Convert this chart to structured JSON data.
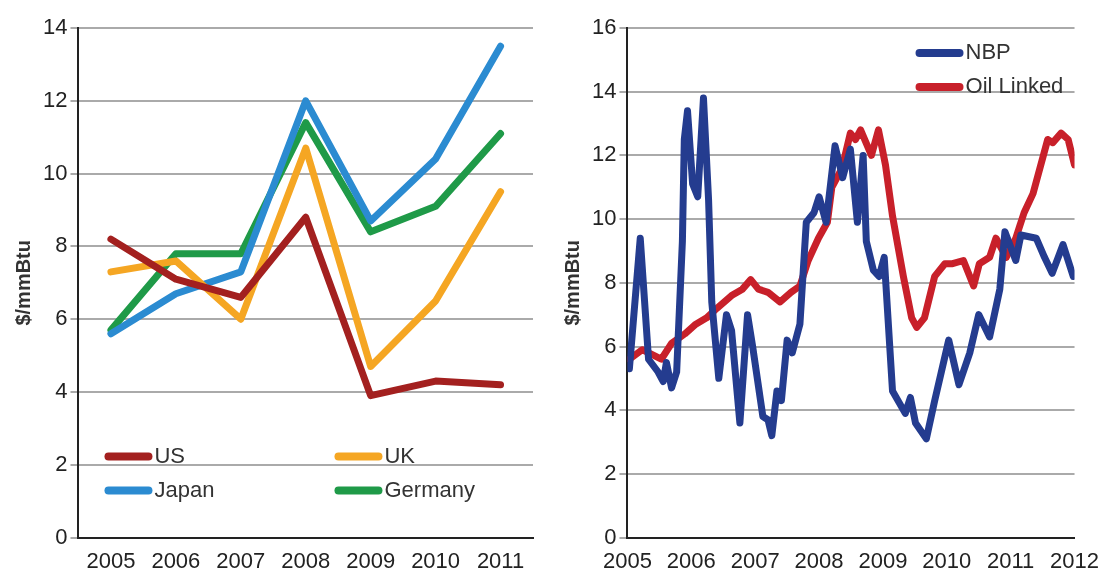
{
  "chart_data": [
    {
      "type": "line",
      "ylabel": "$/mmBtu",
      "categories": [
        "2005",
        "2006",
        "2007",
        "2008",
        "2009",
        "2010",
        "2011"
      ],
      "ylim": [
        0,
        14
      ],
      "yticks": [
        0,
        2,
        4,
        6,
        8,
        10,
        12,
        14
      ],
      "grid": "y",
      "legend": "bottom left",
      "marker": "none",
      "series": [
        {
          "name": "US",
          "color": "#a3201f",
          "values": [
            8.2,
            7.1,
            6.6,
            8.8,
            3.9,
            4.3,
            4.2
          ]
        },
        {
          "name": "UK",
          "color": "#f5a623",
          "values": [
            7.3,
            7.6,
            6.0,
            10.7,
            4.7,
            6.5,
            9.5
          ]
        },
        {
          "name": "Japan",
          "color": "#2b8bd1",
          "values": [
            5.6,
            6.7,
            7.3,
            12.0,
            8.7,
            10.4,
            13.5
          ]
        },
        {
          "name": "Germany",
          "color": "#1f9a48",
          "values": [
            5.7,
            7.8,
            7.8,
            11.4,
            8.4,
            9.1,
            11.1
          ]
        }
      ]
    },
    {
      "type": "line",
      "ylabel": "$/mmBtu",
      "xlim": [
        2005,
        2012
      ],
      "xticks": [
        2005,
        2006,
        2007,
        2008,
        2009,
        2010,
        2011,
        2012
      ],
      "ylim": [
        0,
        16
      ],
      "yticks": [
        0,
        2,
        4,
        6,
        8,
        10,
        12,
        14,
        16
      ],
      "grid": "y",
      "legend": "top right",
      "marker": "none",
      "series": [
        {
          "name": "NBP",
          "color": "#243c8f",
          "x": [
            2005.03,
            2005.2,
            2005.33,
            2005.48,
            2005.56,
            2005.61,
            2005.69,
            2005.77,
            2005.86,
            2005.89,
            2005.94,
            2006.02,
            2006.1,
            2006.19,
            2006.27,
            2006.32,
            2006.43,
            2006.55,
            2006.63,
            2006.76,
            2006.88,
            2006.96,
            2007.12,
            2007.2,
            2007.26,
            2007.34,
            2007.41,
            2007.5,
            2007.58,
            2007.7,
            2007.8,
            2007.92,
            2008.0,
            2008.11,
            2008.25,
            2008.37,
            2008.49,
            2008.6,
            2008.69,
            2008.74,
            2008.85,
            2008.94,
            2009.02,
            2009.15,
            2009.35,
            2009.43,
            2009.51,
            2009.68,
            2009.81,
            2010.03,
            2010.19,
            2010.36,
            2010.5,
            2010.67,
            2010.83,
            2010.91,
            2011.08,
            2011.16,
            2011.4,
            2011.53,
            2011.65,
            2011.82,
            2011.98
          ],
          "values": [
            5.3,
            9.4,
            5.6,
            5.2,
            4.9,
            5.5,
            4.7,
            5.2,
            9.3,
            12.5,
            13.4,
            11.1,
            10.7,
            13.8,
            10.6,
            7.4,
            5.0,
            7.0,
            6.5,
            3.6,
            7.0,
            6.0,
            3.8,
            3.7,
            3.2,
            4.6,
            4.3,
            6.2,
            5.8,
            6.7,
            9.9,
            10.2,
            10.7,
            9.9,
            12.3,
            11.3,
            12.2,
            9.9,
            12.0,
            9.3,
            8.4,
            8.2,
            8.8,
            4.6,
            3.9,
            4.4,
            3.6,
            3.1,
            4.3,
            6.2,
            4.8,
            5.8,
            7.0,
            6.3,
            7.8,
            9.6,
            8.7,
            9.5,
            9.4,
            8.8,
            8.3,
            9.2,
            8.2
          ]
        },
        {
          "name": "Oil Linked",
          "color": "#c8202a",
          "x": [
            2005.03,
            2005.23,
            2005.53,
            2005.69,
            2005.9,
            2006.07,
            2006.24,
            2006.4,
            2006.63,
            2006.8,
            2006.93,
            2007.05,
            2007.2,
            2007.39,
            2007.56,
            2007.7,
            2007.83,
            2007.99,
            2008.13,
            2008.2,
            2008.36,
            2008.49,
            2008.57,
            2008.65,
            2008.82,
            2008.93,
            2009.04,
            2009.15,
            2009.32,
            2009.45,
            2009.53,
            2009.65,
            2009.81,
            2009.97,
            2010.09,
            2010.26,
            2010.42,
            2010.51,
            2010.67,
            2010.77,
            2010.93,
            2011.08,
            2011.21,
            2011.35,
            2011.58,
            2011.66,
            2011.79,
            2011.9,
            2012.0
          ],
          "values": [
            5.6,
            5.9,
            5.6,
            6.1,
            6.4,
            6.7,
            6.9,
            7.2,
            7.6,
            7.8,
            8.1,
            7.8,
            7.7,
            7.4,
            7.7,
            7.9,
            8.7,
            9.4,
            9.9,
            11.0,
            11.6,
            12.7,
            12.5,
            12.8,
            12.0,
            12.8,
            11.7,
            10.1,
            8.2,
            6.9,
            6.6,
            6.9,
            8.2,
            8.6,
            8.6,
            8.7,
            7.9,
            8.6,
            8.8,
            9.4,
            8.8,
            9.4,
            10.2,
            10.8,
            12.5,
            12.4,
            12.7,
            12.5,
            11.7
          ]
        }
      ]
    }
  ]
}
